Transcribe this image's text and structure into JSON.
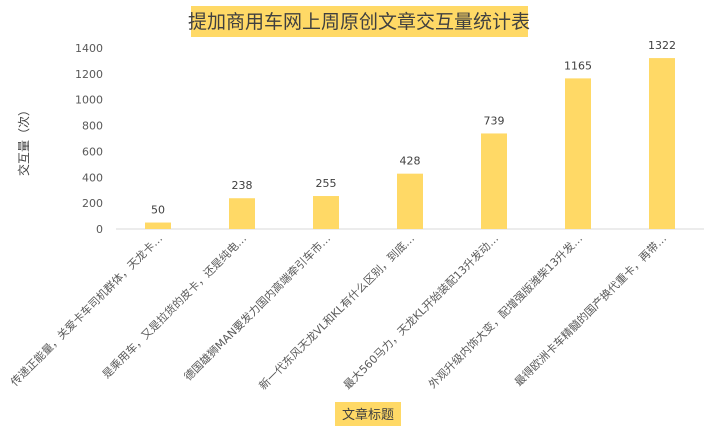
{
  "chart_data": {
    "type": "bar",
    "title": "提加商用车网上周原创文章交互量统计表",
    "xlabel": "文章标题",
    "ylabel": "交互量（次）",
    "ylim": [
      0,
      1400
    ],
    "yticks": [
      0,
      200,
      400,
      600,
      800,
      1000,
      1200,
      1400
    ],
    "grid": false,
    "legend": "none",
    "categories": [
      "传递正能量，关爱卡车司机群体，天龙卡…",
      "是乘用车，又是拉货的皮卡，还是纯电…",
      "德国雄狮MAN要发力国内高端牵引车市…",
      "新一代东风天龙VL和KL有什么区别，到底…",
      "最大560马力，天龙KL开始装配13升发动…",
      "外观升级内饰大变，配增强版潍柴13升发…",
      "最得欧洲卡车精髓的国产换代重卡，再带…"
    ],
    "values": [
      50,
      238,
      255,
      428,
      739,
      1165,
      1322
    ],
    "colors": {
      "bar": "#FFD966",
      "title_bg": "#FFD966",
      "xlabel_bg": "#FFD966",
      "axis": "#D9D9D9",
      "text": "#595959"
    }
  }
}
